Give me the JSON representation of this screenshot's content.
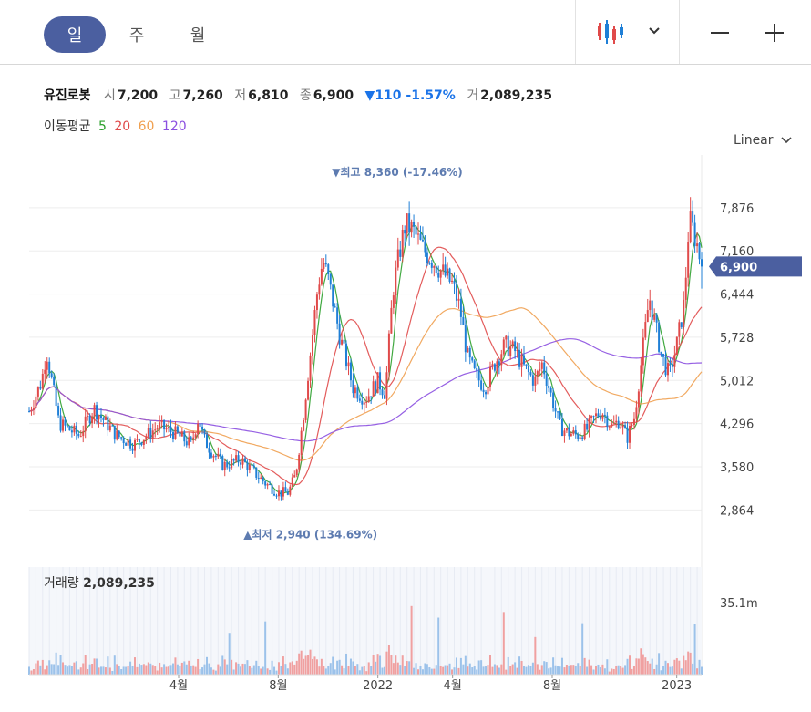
{
  "toolbar": {
    "periods": [
      "일",
      "주",
      "월"
    ],
    "active_period": "일",
    "chart_type_icon": "candlestick-icon",
    "dropdown_icon": "chevron-down-icon",
    "zoom_out_icon": "minus-icon",
    "zoom_in_icon": "plus-icon"
  },
  "stock": {
    "name": "유진로봇",
    "open_label": "시",
    "open": "7,200",
    "high_label": "고",
    "high": "7,260",
    "low_label": "저",
    "low": "6,810",
    "close_label": "종",
    "close": "6,900",
    "change": "▼110 -1.57%",
    "volume_label": "거",
    "volume": "2,089,235"
  },
  "moving_average": {
    "label": "이동평균",
    "periods": [
      {
        "value": "5",
        "color": "#2ca02c"
      },
      {
        "value": "20",
        "color": "#e04a4a"
      },
      {
        "value": "60",
        "color": "#f0a050"
      },
      {
        "value": "120",
        "color": "#8b4fe0"
      }
    ]
  },
  "scale_mode": "Linear",
  "colors": {
    "up": "#e04a4a",
    "down": "#1f7fd6",
    "accent": "#4b5fa0",
    "annotation": "#5d7bb0"
  },
  "chart_data": {
    "type": "candlestick",
    "ylim": [
      2400,
      8600
    ],
    "yticks": [
      2864,
      3580,
      4296,
      5012,
      5728,
      6444,
      7160,
      7876
    ],
    "ytick_labels": [
      "2,864",
      "3,580",
      "4,296",
      "5,012",
      "5,728",
      "6,444",
      "7,160",
      "7,876"
    ],
    "last_price": 6900,
    "last_price_label": "6,900",
    "x_ticks": [
      {
        "label": "4월",
        "month": 6
      },
      {
        "label": "8월",
        "month": 10
      },
      {
        "label": "2022",
        "month": 14
      },
      {
        "label": "4월",
        "month": 17
      },
      {
        "label": "8월",
        "month": 21
      },
      {
        "label": "2023",
        "month": 26
      }
    ],
    "price_path": [
      [
        0,
        4500
      ],
      [
        0.5,
        5000
      ],
      [
        0.7,
        5500
      ],
      [
        1.2,
        4300
      ],
      [
        2.0,
        4100
      ],
      [
        2.6,
        4550
      ],
      [
        3.5,
        4100
      ],
      [
        4.2,
        3950
      ],
      [
        5.2,
        4250
      ],
      [
        5.8,
        4150
      ],
      [
        6.5,
        3950
      ],
      [
        6.8,
        4400
      ],
      [
        7.0,
        4050
      ],
      [
        7.3,
        3850
      ],
      [
        7.8,
        3600
      ],
      [
        8.5,
        3700
      ],
      [
        9.0,
        3500
      ],
      [
        9.5,
        3300
      ],
      [
        10.0,
        3150
      ],
      [
        10.4,
        3150
      ],
      [
        10.7,
        3450
      ],
      [
        11.0,
        4400
      ],
      [
        11.3,
        5500
      ],
      [
        11.6,
        6600
      ],
      [
        11.8,
        7000
      ],
      [
        12.0,
        6700
      ],
      [
        12.5,
        5700
      ],
      [
        13.0,
        4900
      ],
      [
        13.5,
        4700
      ],
      [
        14.0,
        5000
      ],
      [
        14.3,
        4800
      ],
      [
        14.6,
        6500
      ],
      [
        14.9,
        7200
      ],
      [
        15.1,
        7600
      ],
      [
        15.4,
        7500
      ],
      [
        15.8,
        7200
      ],
      [
        16.2,
        7000
      ],
      [
        16.6,
        6800
      ],
      [
        17.0,
        6600
      ],
      [
        17.3,
        6200
      ],
      [
        17.6,
        5400
      ],
      [
        17.9,
        5100
      ],
      [
        18.3,
        4900
      ],
      [
        18.7,
        5300
      ],
      [
        19.1,
        5600
      ],
      [
        19.5,
        5500
      ],
      [
        19.9,
        5200
      ],
      [
        20.3,
        5000
      ],
      [
        20.6,
        5300
      ],
      [
        21.0,
        4700
      ],
      [
        21.3,
        4250
      ],
      [
        21.6,
        4150
      ],
      [
        22.0,
        4100
      ],
      [
        22.4,
        4200
      ],
      [
        22.7,
        4400
      ],
      [
        23.0,
        4500
      ],
      [
        23.4,
        4250
      ],
      [
        23.7,
        4350
      ],
      [
        24.0,
        4050
      ],
      [
        24.3,
        4400
      ],
      [
        24.6,
        5400
      ],
      [
        24.9,
        6400
      ],
      [
        25.1,
        6000
      ],
      [
        25.4,
        5400
      ],
      [
        25.7,
        5100
      ],
      [
        26.0,
        5600
      ],
      [
        26.3,
        6300
      ],
      [
        26.5,
        7700
      ],
      [
        26.8,
        7300
      ],
      [
        27.0,
        6900
      ]
    ],
    "max_annotation": {
      "label": "▼최고 8,360 (-17.46%)",
      "value": 8360
    },
    "min_annotation": {
      "label": "▲최저 2,940 (134.69%)",
      "value": 2940
    },
    "volume_panel": {
      "label": "거래량",
      "value": "2,089,235",
      "ytick_label": "35.1m",
      "ymax": 50
    },
    "legend": "none",
    "grid": true
  }
}
